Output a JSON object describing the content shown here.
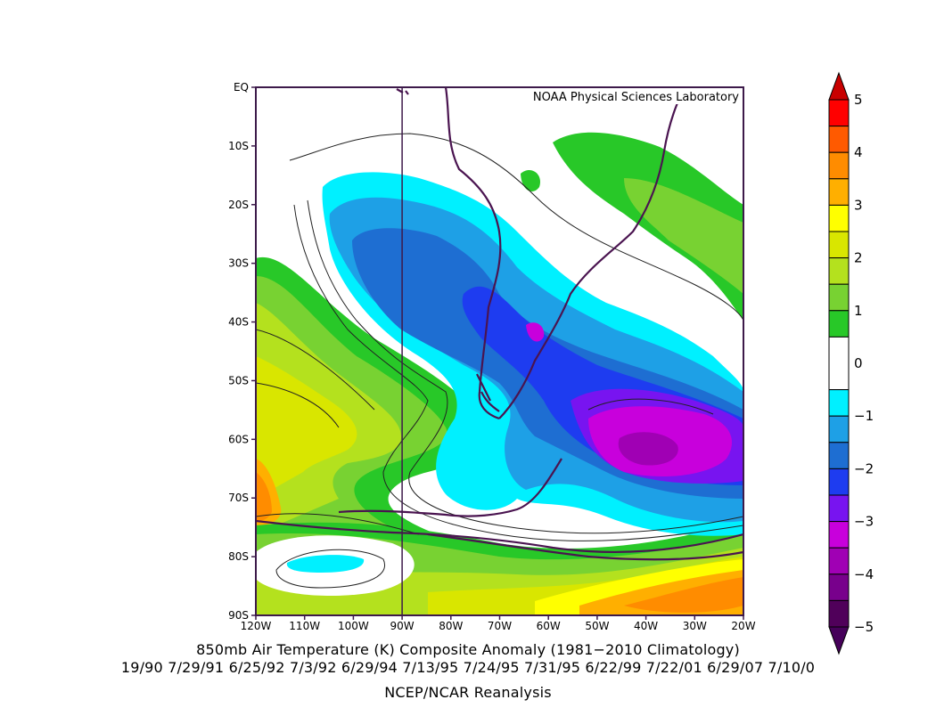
{
  "map": {
    "watermark": "NOAA Physical Sciences Laboratory",
    "lat_labels": [
      "EQ",
      "10S",
      "20S",
      "30S",
      "40S",
      "50S",
      "60S",
      "70S",
      "80S",
      "90S"
    ],
    "lon_labels": [
      "120W",
      "110W",
      "100W",
      "90W",
      "80W",
      "70W",
      "60W",
      "50W",
      "40W",
      "30W",
      "20W"
    ],
    "lat_range": [
      -90,
      0
    ],
    "lon_range": [
      -120,
      -20
    ],
    "variable": "850mb Air Temperature (K) Composite Anomaly",
    "colors": {
      "frame": "#3d1a4a",
      "coast": "#4a1450",
      "contour": "#222222"
    }
  },
  "colorbar": {
    "ticks": [
      "5",
      "4",
      "3",
      "2",
      "1",
      "0",
      "−1",
      "−2",
      "−3",
      "−4",
      "−5"
    ],
    "bins": [
      {
        "min": 4.5,
        "max": 5,
        "color": "#ff0000"
      },
      {
        "min": 4,
        "max": 4.5,
        "color": "#ff5a00"
      },
      {
        "min": 3.5,
        "max": 4,
        "color": "#ff8c00"
      },
      {
        "min": 3,
        "max": 3.5,
        "color": "#ffaf00"
      },
      {
        "min": 2.5,
        "max": 3,
        "color": "#ffff00"
      },
      {
        "min": 2,
        "max": 2.5,
        "color": "#d9e600"
      },
      {
        "min": 1.5,
        "max": 2,
        "color": "#b4e11e"
      },
      {
        "min": 1,
        "max": 1.5,
        "color": "#78d232"
      },
      {
        "min": 0.5,
        "max": 1,
        "color": "#28c828"
      },
      {
        "min": -0.5,
        "max": 0.5,
        "color": "#ffffff"
      },
      {
        "min": -1,
        "max": -0.5,
        "color": "#00f0ff"
      },
      {
        "min": -1.5,
        "max": -1,
        "color": "#1ea0e6"
      },
      {
        "min": -2,
        "max": -1.5,
        "color": "#1e6ed2"
      },
      {
        "min": -2.5,
        "max": -2,
        "color": "#1e3cf0"
      },
      {
        "min": -3,
        "max": -2.5,
        "color": "#7814f0"
      },
      {
        "min": -3.5,
        "max": -3,
        "color": "#c800dc"
      },
      {
        "min": -4,
        "max": -3.5,
        "color": "#a000b4"
      },
      {
        "min": -4.5,
        "max": -4,
        "color": "#78008c"
      },
      {
        "min": -5,
        "max": -4.5,
        "color": "#50005a"
      }
    ],
    "arrow_top_color": "#c80000",
    "arrow_bottom_color": "#46005a"
  },
  "caption": {
    "title": "850mb Air Temperature (K) Composite Anomaly (1981−2010 Climatology)",
    "dates": "19/90 7/29/91 6/25/92 7/3/92 6/29/94 7/13/95 7/24/95 7/31/95 6/22/99 7/22/01 6/29/07 7/10/0",
    "source": "NCEP/NCAR Reanalysis"
  }
}
